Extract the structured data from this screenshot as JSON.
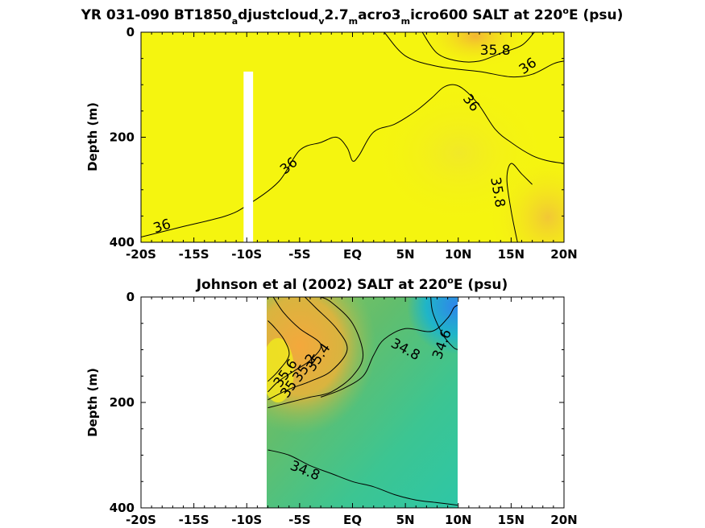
{
  "chart_data": [
    {
      "type": "heatmap",
      "title_parts": [
        "YR 031-090 BT1850",
        "a",
        "djustcloud",
        "v",
        "2.7",
        "m",
        "acro3",
        "m",
        "icro600 SALT at 220",
        "o",
        "E (psu)"
      ],
      "title_styles": [
        "n",
        "sub",
        "n",
        "sub",
        "n",
        "sub",
        "n",
        "sub",
        "n",
        "sup",
        "n"
      ],
      "ylabel": "Depth (m)",
      "xlim": [
        -20,
        20
      ],
      "ylim": [
        400,
        0
      ],
      "xticks": [
        -20,
        -15,
        -10,
        -5,
        0,
        5,
        10,
        15,
        20
      ],
      "xtick_labels": [
        "-20S",
        "-15S",
        "-10S",
        "-5S",
        "EQ",
        "5N",
        "10N",
        "15N",
        "20N"
      ],
      "yticks": [
        0,
        200,
        400
      ],
      "ytick_labels": [
        "0",
        "200",
        "400"
      ],
      "contours": [
        {
          "level": 36,
          "points": [
            [
              -20,
              390
            ],
            [
              -16,
              370
            ],
            [
              -12,
              350
            ],
            [
              -10,
              330
            ],
            [
              -7,
              285
            ],
            [
              -5,
              225
            ],
            [
              -3,
              210
            ],
            [
              -1.5,
              200
            ],
            [
              -0.5,
              220
            ],
            [
              0,
              245
            ],
            [
              0.6,
              235
            ],
            [
              2,
              190
            ],
            [
              4,
              175
            ],
            [
              6,
              150
            ],
            [
              7.5,
              125
            ],
            [
              8.6,
              105
            ],
            [
              9.6,
              100
            ],
            [
              10.6,
              110
            ],
            [
              12,
              140
            ],
            [
              13.5,
              185
            ],
            [
              15,
              210
            ],
            [
              17,
              235
            ],
            [
              18.5,
              245
            ],
            [
              20,
              250
            ]
          ]
        },
        {
          "level": 35.8,
          "points": [
            [
              17,
              290
            ],
            [
              16,
              270
            ],
            [
              15,
              250
            ],
            [
              14.6,
              280
            ],
            [
              15,
              340
            ],
            [
              15.6,
              400
            ]
          ]
        },
        {
          "level": 35.8,
          "points": [
            [
              6.6,
              0
            ],
            [
              8,
              40
            ],
            [
              10,
              55
            ],
            [
              12,
              55
            ],
            [
              14,
              40
            ],
            [
              16,
              25
            ],
            [
              17.2,
              0
            ]
          ]
        },
        {
          "level": 36,
          "points": [
            [
              3,
              0
            ],
            [
              5,
              45
            ],
            [
              8,
              65
            ],
            [
              12,
              75
            ],
            [
              15,
              85
            ],
            [
              17,
              80
            ],
            [
              19,
              60
            ],
            [
              20,
              55
            ]
          ]
        }
      ],
      "contour_labels": [
        {
          "text": "36",
          "x": -18,
          "y": 370,
          "angle": -18
        },
        {
          "text": "36",
          "x": -6,
          "y": 255,
          "angle": -40
        },
        {
          "text": "36",
          "x": 11.2,
          "y": 135,
          "angle": 52
        },
        {
          "text": "35.8",
          "x": 13.7,
          "y": 305,
          "angle": 80
        },
        {
          "text": "35.8",
          "x": 13.5,
          "y": 35,
          "angle": 0
        },
        {
          "text": "36",
          "x": 16.6,
          "y": 65,
          "angle": -35
        }
      ],
      "missing_column": {
        "x0": -10.3,
        "x1": -9.4,
        "y0": 75,
        "y1": 400
      }
    },
    {
      "type": "heatmap",
      "title_parts": [
        "Johnson et al (2002) SALT at 220",
        "o",
        "E (psu)"
      ],
      "title_styles": [
        "n",
        "sup",
        "n"
      ],
      "ylabel": "Depth (m)",
      "xlim": [
        -20,
        20
      ],
      "ylim": [
        400,
        0
      ],
      "data_xlim": [
        -8,
        10
      ],
      "xticks": [
        -20,
        -15,
        -10,
        -5,
        0,
        5,
        10,
        15,
        20
      ],
      "xtick_labels": [
        "-20S",
        "-15S",
        "-10S",
        "-5S",
        "EQ",
        "5N",
        "10N",
        "15N",
        "20N"
      ],
      "yticks": [
        0,
        200,
        400
      ],
      "ytick_labels": [
        "0",
        "200",
        "400"
      ],
      "contours": [
        {
          "level": 34.8,
          "points": [
            [
              -8,
              290
            ],
            [
              -6,
              300
            ],
            [
              -4,
              320
            ],
            [
              -2,
              335
            ],
            [
              0,
              350
            ],
            [
              2,
              360
            ],
            [
              4,
              375
            ],
            [
              6,
              385
            ],
            [
              8,
              390
            ],
            [
              10,
              395
            ]
          ]
        },
        {
          "level": 34.8,
          "points": [
            [
              -3,
              190
            ],
            [
              -1,
              175
            ],
            [
              1,
              150
            ],
            [
              2,
              110
            ],
            [
              3,
              80
            ],
            [
              5,
              60
            ],
            [
              7.5,
              65
            ],
            [
              9,
              40
            ],
            [
              9.6,
              20
            ],
            [
              10,
              15
            ]
          ]
        },
        {
          "level": 34.6,
          "points": [
            [
              7.4,
              0
            ],
            [
              7.6,
              30
            ],
            [
              8.5,
              70
            ],
            [
              9.5,
              95
            ],
            [
              10,
              100
            ]
          ]
        },
        {
          "level": 35,
          "points": [
            [
              -8,
              210
            ],
            [
              -6,
              200
            ],
            [
              -4,
              190
            ],
            [
              -2,
              180
            ],
            [
              0,
              150
            ],
            [
              1,
              110
            ],
            [
              0,
              50
            ],
            [
              -2,
              10
            ],
            [
              -3,
              0
            ]
          ]
        },
        {
          "level": 35.2,
          "points": [
            [
              -8,
              195
            ],
            [
              -6,
              175
            ],
            [
              -4,
              160
            ],
            [
              -2,
              140
            ],
            [
              -0.5,
              100
            ],
            [
              -1.5,
              60
            ],
            [
              -3.5,
              20
            ],
            [
              -4.5,
              0
            ]
          ]
        },
        {
          "level": 35.4,
          "points": [
            [
              -8,
              180
            ],
            [
              -7,
              160
            ],
            [
              -5.5,
              140
            ],
            [
              -4,
              120
            ],
            [
              -3,
              90
            ],
            [
              -5,
              60
            ],
            [
              -6.5,
              30
            ],
            [
              -7.5,
              0
            ]
          ]
        },
        {
          "level": 35.6,
          "points": [
            [
              -8,
              160
            ],
            [
              -7,
              140
            ],
            [
              -6,
              110
            ],
            [
              -6.5,
              80
            ],
            [
              -7.5,
              55
            ],
            [
              -8,
              45
            ]
          ]
        }
      ],
      "contour_labels": [
        {
          "text": "34.8",
          "x": 5,
          "y": 100,
          "angle": 28
        },
        {
          "text": "34.6",
          "x": 8.5,
          "y": 90,
          "angle": -70
        },
        {
          "text": "35.4",
          "x": -3.2,
          "y": 115,
          "angle": -55
        },
        {
          "text": "35.2",
          "x": -4.5,
          "y": 135,
          "angle": -55
        },
        {
          "text": "35",
          "x": -6,
          "y": 175,
          "angle": -55
        },
        {
          "text": "35.6",
          "x": -6.3,
          "y": 145,
          "angle": -55
        },
        {
          "text": "34.8",
          "x": -4.5,
          "y": 330,
          "angle": 22
        }
      ]
    }
  ],
  "colors": {
    "top_background": "#f5f50f",
    "top_warm": "#f3c22c",
    "bottom_green": "#59bf73",
    "bottom_teal": "#2dc5a8",
    "bottom_orange": "#f2ad3e",
    "bottom_yellow": "#eaea1a",
    "bottom_blue": "#2d8fe6",
    "missing": "#ffffff"
  }
}
